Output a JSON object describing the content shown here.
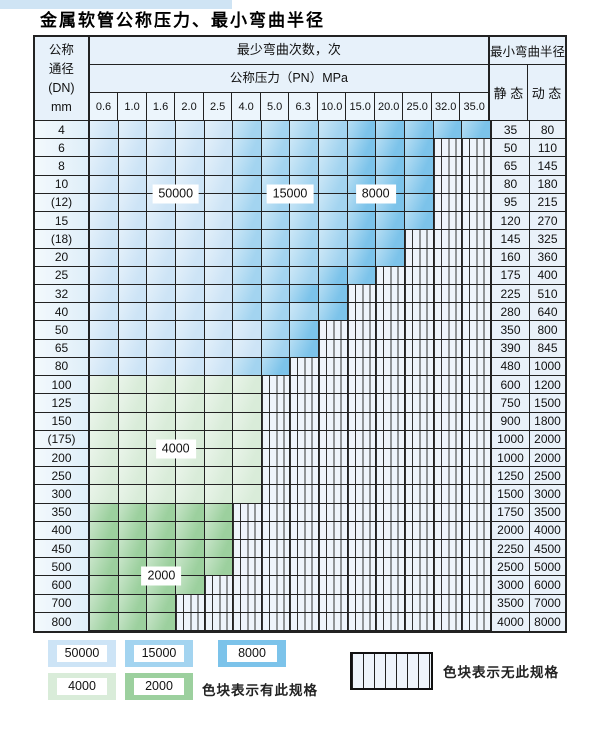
{
  "title": "金属软管公称压力、最小弯曲半径",
  "colors": {
    "blue_50000": "#cde4f6",
    "blue_15000": "#a3d4f0",
    "blue_8000": "#7cc3ea",
    "green_4000": "#d9ecd9",
    "green_2000": "#9cd09e",
    "grid_line": "#222222"
  },
  "table": {
    "header": {
      "dn_label_lines": [
        "公称",
        "通径",
        "(DN)",
        "mm"
      ],
      "bend_cycles_label": "最少弯曲次数，次",
      "pressure_label": "公称压力（PN）MPa",
      "pressure_columns": [
        "0.6",
        "1.0",
        "1.6",
        "2.0",
        "2.5",
        "4.0",
        "5.0",
        "6.3",
        "10.0",
        "15.0",
        "20.0",
        "25.0",
        "32.0",
        "35.0"
      ],
      "radius_label": "最小弯曲半径",
      "static_label": "静 态",
      "dynamic_label": "动 态"
    },
    "rows": [
      {
        "dn": "4",
        "seg": [
          [
            "50000",
            5
          ],
          [
            "15000",
            4
          ],
          [
            "8000",
            5
          ]
        ],
        "static": "35",
        "dynamic": "80"
      },
      {
        "dn": "6",
        "seg": [
          [
            "50000",
            5
          ],
          [
            "15000",
            4
          ],
          [
            "8000",
            3
          ]
        ],
        "static": "50",
        "dynamic": "110"
      },
      {
        "dn": "8",
        "seg": [
          [
            "50000",
            5
          ],
          [
            "15000",
            4
          ],
          [
            "8000",
            3
          ]
        ],
        "static": "65",
        "dynamic": "145"
      },
      {
        "dn": "10",
        "seg": [
          [
            "50000",
            5
          ],
          [
            "15000",
            4
          ],
          [
            "8000",
            3
          ]
        ],
        "static": "80",
        "dynamic": "180"
      },
      {
        "dn": "(12)",
        "seg": [
          [
            "50000",
            5
          ],
          [
            "15000",
            4
          ],
          [
            "8000",
            3
          ]
        ],
        "static": "95",
        "dynamic": "215"
      },
      {
        "dn": "15",
        "seg": [
          [
            "50000",
            5
          ],
          [
            "15000",
            4
          ],
          [
            "8000",
            3
          ]
        ],
        "static": "120",
        "dynamic": "270"
      },
      {
        "dn": "(18)",
        "seg": [
          [
            "50000",
            5
          ],
          [
            "15000",
            4
          ],
          [
            "8000",
            2
          ]
        ],
        "static": "145",
        "dynamic": "325"
      },
      {
        "dn": "20",
        "seg": [
          [
            "50000",
            5
          ],
          [
            "15000",
            4
          ],
          [
            "8000",
            2
          ]
        ],
        "static": "160",
        "dynamic": "360"
      },
      {
        "dn": "25",
        "seg": [
          [
            "50000",
            5
          ],
          [
            "15000",
            3
          ],
          [
            "8000",
            2
          ]
        ],
        "static": "175",
        "dynamic": "400"
      },
      {
        "dn": "32",
        "seg": [
          [
            "50000",
            5
          ],
          [
            "15000",
            2
          ],
          [
            "8000",
            2
          ]
        ],
        "static": "225",
        "dynamic": "510"
      },
      {
        "dn": "40",
        "seg": [
          [
            "50000",
            5
          ],
          [
            "15000",
            3
          ],
          [
            "8000",
            1
          ]
        ],
        "static": "280",
        "dynamic": "640"
      },
      {
        "dn": "50",
        "seg": [
          [
            "50000",
            6
          ],
          [
            "15000",
            1
          ],
          [
            "8000",
            1
          ]
        ],
        "static": "350",
        "dynamic": "800"
      },
      {
        "dn": "65",
        "seg": [
          [
            "50000",
            6
          ],
          [
            "15000",
            1
          ],
          [
            "8000",
            1
          ]
        ],
        "static": "390",
        "dynamic": "845"
      },
      {
        "dn": "80",
        "seg": [
          [
            "50000",
            5
          ],
          [
            "15000",
            1
          ],
          [
            "8000",
            1
          ]
        ],
        "static": "480",
        "dynamic": "1000"
      },
      {
        "dn": "100",
        "seg": [
          [
            "4000",
            6
          ]
        ],
        "static": "600",
        "dynamic": "1200"
      },
      {
        "dn": "125",
        "seg": [
          [
            "4000",
            6
          ]
        ],
        "static": "750",
        "dynamic": "1500"
      },
      {
        "dn": "150",
        "seg": [
          [
            "4000",
            6
          ]
        ],
        "static": "900",
        "dynamic": "1800"
      },
      {
        "dn": "(175)",
        "seg": [
          [
            "4000",
            6
          ]
        ],
        "static": "1000",
        "dynamic": "2000"
      },
      {
        "dn": "200",
        "seg": [
          [
            "4000",
            6
          ]
        ],
        "static": "1000",
        "dynamic": "2000"
      },
      {
        "dn": "250",
        "seg": [
          [
            "4000",
            6
          ]
        ],
        "static": "1250",
        "dynamic": "2500"
      },
      {
        "dn": "300",
        "seg": [
          [
            "4000",
            6
          ]
        ],
        "static": "1500",
        "dynamic": "3000"
      },
      {
        "dn": "350",
        "seg": [
          [
            "2000",
            5
          ]
        ],
        "static": "1750",
        "dynamic": "3500"
      },
      {
        "dn": "400",
        "seg": [
          [
            "2000",
            5
          ]
        ],
        "static": "2000",
        "dynamic": "4000"
      },
      {
        "dn": "450",
        "seg": [
          [
            "2000",
            5
          ]
        ],
        "static": "2250",
        "dynamic": "4500"
      },
      {
        "dn": "500",
        "seg": [
          [
            "2000",
            5
          ]
        ],
        "static": "2500",
        "dynamic": "5000"
      },
      {
        "dn": "600",
        "seg": [
          [
            "2000",
            4
          ]
        ],
        "static": "3000",
        "dynamic": "6000"
      },
      {
        "dn": "700",
        "seg": [
          [
            "2000",
            3
          ]
        ],
        "static": "3500",
        "dynamic": "7000"
      },
      {
        "dn": "800",
        "seg": [
          [
            "2000",
            3
          ]
        ],
        "static": "4000",
        "dynamic": "8000"
      }
    ],
    "region_labels": [
      {
        "text": "50000",
        "col": 3,
        "row": 4
      },
      {
        "text": "15000",
        "col": 7,
        "row": 4
      },
      {
        "text": "8000",
        "col": 10,
        "row": 4
      },
      {
        "text": "4000",
        "col": 3,
        "row": 18
      },
      {
        "text": "2000",
        "col": 2.5,
        "row": 25
      }
    ]
  },
  "legend": {
    "items": [
      {
        "value": "50000"
      },
      {
        "value": "15000"
      },
      {
        "value": "8000"
      },
      {
        "value": "4000"
      },
      {
        "value": "2000"
      }
    ],
    "has_spec_text": "色块表示有此规格",
    "no_spec_text": "色块表示无此规格"
  }
}
